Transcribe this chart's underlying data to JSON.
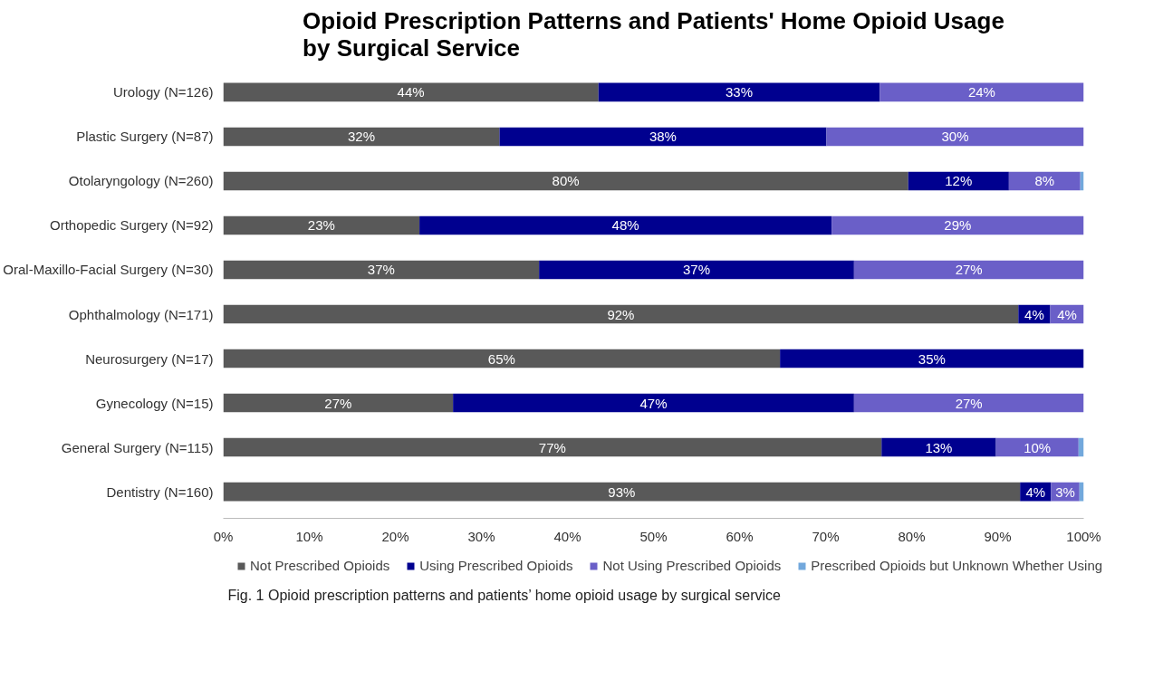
{
  "chart_data": {
    "type": "bar",
    "orientation": "horizontal",
    "stacked": true,
    "title": "Opioid Prescription Patterns and Patients' Home Opioid Usage by Surgical Service",
    "categories": [
      "Urology (N=126)",
      "Plastic Surgery (N=87)",
      "Otolaryngology (N=260)",
      "Orthopedic Surgery (N=92)",
      "Oral-Maxillo-Facial Surgery (N=30)",
      "Ophthalmology (N=171)",
      "Neurosurgery (N=17)",
      "Gynecology (N=15)",
      "General Surgery (N=115)",
      "Dentistry (N=160)"
    ],
    "series": [
      {
        "name": "Not Prescribed Opioids",
        "color": "#595959",
        "values": [
          43.6,
          32.1,
          79.6,
          22.8,
          36.7,
          92.4,
          64.7,
          26.7,
          76.5,
          92.6
        ],
        "value_labels": [
          "44%",
          "32%",
          "80%",
          "23%",
          "37%",
          "92%",
          "65%",
          "27%",
          "77%",
          "93%"
        ]
      },
      {
        "name": "Using Prescribed Opioids",
        "color": "#00008f",
        "values": [
          32.7,
          38.0,
          11.7,
          47.9,
          36.6,
          3.7,
          35.3,
          46.6,
          13.3,
          3.6
        ],
        "value_labels": [
          "33%",
          "38%",
          "12%",
          "48%",
          "37%",
          "4%",
          "35%",
          "47%",
          "13%",
          "4%"
        ]
      },
      {
        "name": "Not Using Prescribed Opioids",
        "color": "#6a5fc8",
        "values": [
          23.7,
          29.9,
          8.3,
          29.3,
          26.7,
          3.9,
          null,
          26.7,
          9.6,
          3.3
        ],
        "value_labels": [
          "24%",
          "30%",
          "8%",
          "29%",
          "27%",
          "4%",
          null,
          "27%",
          "10%",
          "3%"
        ]
      },
      {
        "name": "Prescribed Opioids but Unknown Whether Using",
        "color": "#72a8dc",
        "values": [
          null,
          null,
          0.4,
          null,
          null,
          null,
          null,
          null,
          0.6,
          0.5
        ]
      }
    ],
    "xlim": [
      0,
      100
    ],
    "xticks": [
      {
        "value": 0,
        "label": "0%"
      },
      {
        "value": 10,
        "label": "10%"
      },
      {
        "value": 20,
        "label": "20%"
      },
      {
        "value": 30,
        "label": "30%"
      },
      {
        "value": 40,
        "label": "40%"
      },
      {
        "value": 50,
        "label": "50%"
      },
      {
        "value": 60,
        "label": "60%"
      },
      {
        "value": 70,
        "label": "70%"
      },
      {
        "value": 80,
        "label": "80%"
      },
      {
        "value": 90,
        "label": "90%"
      },
      {
        "value": 100,
        "label": "100%"
      }
    ],
    "grid": false,
    "legend": "bottom",
    "annotations": [
      "Fig. 1  Opioid prescription patterns and patients’ home opioid usage by surgical service"
    ]
  }
}
